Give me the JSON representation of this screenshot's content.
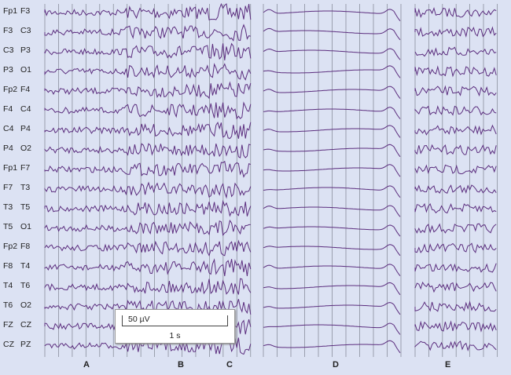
{
  "channels": [
    [
      "Fp1",
      "F3"
    ],
    [
      "F3",
      "C3"
    ],
    [
      "C3",
      "P3"
    ],
    [
      "P3",
      "O1"
    ],
    [
      "Fp2",
      "F4"
    ],
    [
      "F4",
      "C4"
    ],
    [
      "C4",
      "P4"
    ],
    [
      "P4",
      "O2"
    ],
    [
      "Fp1",
      "F7"
    ],
    [
      "F7",
      "T3"
    ],
    [
      "T3",
      "T5"
    ],
    [
      "T5",
      "O1"
    ],
    [
      "Fp2",
      "F8"
    ],
    [
      "F8",
      "T4"
    ],
    [
      "T4",
      "T6"
    ],
    [
      "T6",
      "O2"
    ],
    [
      "FZ",
      "CZ"
    ],
    [
      "CZ",
      "PZ"
    ]
  ],
  "panels": [
    "A",
    "B",
    "C",
    "D",
    "E"
  ],
  "scale_bar": {
    "amplitude": "50 µV",
    "time": "1 s"
  },
  "colors": {
    "background": "#dce2f3",
    "trace": "#5b2d7e",
    "gridline": "#8a8f9c"
  }
}
